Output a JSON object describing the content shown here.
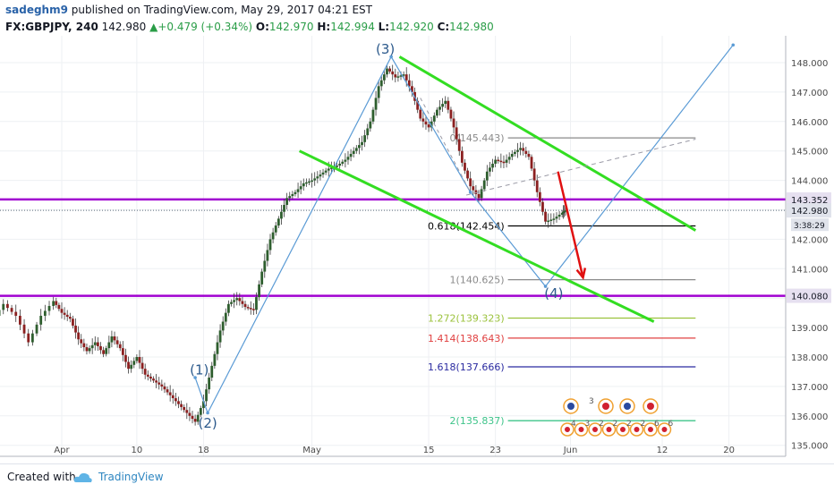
{
  "header": {
    "author": "sadeghm9",
    "published_text": " published on TradingView.com, May 29, 2017 04:21 EST",
    "symbol": "FX:GBPJPY, 240",
    "last": "142.980",
    "change": "+0.479 (+0.34%)",
    "open_label": "O:",
    "open": "142.970",
    "high_label": "H:",
    "high": "142.994",
    "low_label": "L:",
    "low": "142.920",
    "close_label": "C:",
    "close": "142.980"
  },
  "footer": {
    "created_with": "Created with",
    "brand": "TradingView"
  },
  "colors": {
    "purple": "#a000d0",
    "green": "#33dd22",
    "wave": "#5b9bd5",
    "red_arrow": "#e01010",
    "candle_up": "#2e5e2e",
    "candle_down": "#8b2020"
  },
  "chart_data": {
    "type": "candlestick",
    "y_range": [
      134.75,
      148.6
    ],
    "y_axis_ticks": [
      "135.000",
      "136.000",
      "137.000",
      "138.000",
      "139.000",
      "140.000",
      "141.000",
      "142.000",
      "143.000",
      "144.000",
      "145.000",
      "146.000",
      "147.000",
      "148.000"
    ],
    "x_axis_ticks": [
      {
        "label": "Apr",
        "day": 0
      },
      {
        "label": "10",
        "day": 9
      },
      {
        "label": "18",
        "day": 17
      },
      {
        "label": "May",
        "day": 30
      },
      {
        "label": "15",
        "day": 44
      },
      {
        "label": "23",
        "day": 52
      },
      {
        "label": "Jun",
        "day": 61
      },
      {
        "label": "12",
        "day": 72
      },
      {
        "label": "20",
        "day": 80
      }
    ],
    "price_series_path": [
      [
        -8.5,
        139.2
      ],
      [
        -7,
        139.8
      ],
      [
        -5.5,
        139.4
      ],
      [
        -4,
        138.5
      ],
      [
        -2.5,
        139.4
      ],
      [
        -1,
        139.9
      ],
      [
        0,
        139.5
      ],
      [
        1,
        139.3
      ],
      [
        2,
        138.6
      ],
      [
        3,
        138.2
      ],
      [
        4,
        138.5
      ],
      [
        5,
        138.1
      ],
      [
        6,
        138.7
      ],
      [
        7,
        138.3
      ],
      [
        8,
        137.6
      ],
      [
        9,
        138.0
      ],
      [
        10,
        137.4
      ],
      [
        11,
        137.2
      ],
      [
        12,
        137.0
      ],
      [
        13,
        136.7
      ],
      [
        14,
        136.4
      ],
      [
        15,
        136.1
      ],
      [
        16,
        135.8
      ],
      [
        17,
        136.5
      ],
      [
        18,
        137.7
      ],
      [
        19,
        138.9
      ],
      [
        20,
        139.8
      ],
      [
        21,
        140.0
      ],
      [
        22,
        139.7
      ],
      [
        23,
        139.6
      ],
      [
        24,
        140.9
      ],
      [
        25,
        142.0
      ],
      [
        26,
        142.7
      ],
      [
        27,
        143.4
      ],
      [
        28,
        143.6
      ],
      [
        29,
        143.9
      ],
      [
        30,
        144.0
      ],
      [
        31,
        144.2
      ],
      [
        32,
        144.4
      ],
      [
        33,
        144.5
      ],
      [
        34,
        144.7
      ],
      [
        35,
        145.0
      ],
      [
        36,
        145.3
      ],
      [
        37,
        146.0
      ],
      [
        38,
        147.2
      ],
      [
        39,
        147.8
      ],
      [
        40,
        147.5
      ],
      [
        41,
        147.6
      ],
      [
        42,
        147.0
      ],
      [
        43,
        146.1
      ],
      [
        44,
        145.8
      ],
      [
        45,
        146.4
      ],
      [
        46,
        146.7
      ],
      [
        47,
        145.8
      ],
      [
        48,
        144.6
      ],
      [
        49,
        143.8
      ],
      [
        50,
        143.4
      ],
      [
        51,
        144.3
      ],
      [
        52,
        144.7
      ],
      [
        53,
        144.6
      ],
      [
        54,
        144.9
      ],
      [
        55,
        145.1
      ],
      [
        56,
        144.8
      ],
      [
        57,
        143.6
      ],
      [
        58,
        142.6
      ],
      [
        59,
        142.7
      ],
      [
        60,
        142.9
      ],
      [
        60.4,
        142.98
      ]
    ],
    "horizontal_levels": [
      {
        "name": "resistance",
        "price": 143.352,
        "label": "143.352",
        "color": "#a000d0"
      },
      {
        "name": "support",
        "price": 140.08,
        "label": "140.080",
        "color": "#a000d0"
      },
      {
        "name": "last_price",
        "price": 142.98,
        "label": "142.980",
        "color": "#5b6b7b"
      }
    ],
    "countdown_label": "3:38:29",
    "fibonacci_levels": [
      {
        "label": "0(145.443)",
        "price": 145.443,
        "color": "#8a8a8a"
      },
      {
        "label": "0.618(142.454)",
        "price": 142.454,
        "color": "#000000"
      },
      {
        "label": "1(140.625)",
        "price": 140.625,
        "color": "#8a8a8a"
      },
      {
        "label": "1.272(139.323)",
        "price": 139.323,
        "color": "#9bc23c"
      },
      {
        "label": "1.414(138.643)",
        "price": 138.643,
        "color": "#e04040"
      },
      {
        "label": "1.618(137.666)",
        "price": 137.666,
        "color": "#2a2aa0"
      },
      {
        "label": "2(135.837)",
        "price": 135.837,
        "color": "#3ec48a"
      }
    ],
    "fib_x_range": [
      53.5,
      76
    ],
    "wave_labels": [
      {
        "label": "(1)",
        "day": 16.5,
        "price": 137.4
      },
      {
        "label": "(2)",
        "day": 17.5,
        "price": 135.6
      },
      {
        "label": "(3)",
        "day": 38.8,
        "price": 148.3
      },
      {
        "label": "(4)",
        "day": 59,
        "price": 140.0
      }
    ],
    "wave_path": [
      [
        16,
        137.3
      ],
      [
        17.5,
        136.1
      ],
      [
        39.5,
        148.2
      ],
      [
        49,
        143.6
      ],
      [
        58,
        140.4
      ],
      [
        80.5,
        148.6
      ]
    ],
    "channel_upper": [
      [
        40.5,
        148.2
      ],
      [
        76,
        142.3
      ]
    ],
    "channel_lower": [
      [
        28.5,
        145.0
      ],
      [
        71,
        139.2
      ]
    ],
    "trend_dashed": [
      [
        48.5,
        143.5
      ],
      [
        76,
        145.4
      ]
    ],
    "arrow": {
      "from": [
        59.5,
        144.3
      ],
      "to": [
        62.5,
        140.7
      ]
    },
    "event_markers_row1": [
      "3"
    ],
    "event_markers_row2": [
      "4",
      "3",
      "2",
      "2",
      "2",
      "2",
      "6",
      "6"
    ]
  }
}
